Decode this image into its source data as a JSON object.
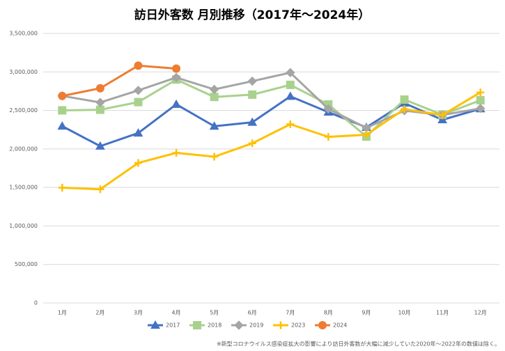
{
  "chart_data": {
    "type": "line",
    "title": "訪日外客数 月別推移（2017年～2024年）",
    "categories": [
      "1月",
      "2月",
      "3月",
      "4月",
      "5月",
      "6月",
      "7月",
      "8月",
      "9月",
      "10月",
      "11月",
      "12月"
    ],
    "series": [
      {
        "name": "2017",
        "color": "#4472c4",
        "marker": "triangle",
        "values": [
          2296000,
          2036000,
          2206000,
          2579000,
          2295000,
          2346000,
          2683000,
          2478000,
          2280000,
          2595000,
          2378000,
          2521000
        ]
      },
      {
        "name": "2018",
        "color": "#a9d18e",
        "marker": "square",
        "values": [
          2501000,
          2509000,
          2608000,
          2901000,
          2675000,
          2705000,
          2832000,
          2578000,
          2160000,
          2641000,
          2444000,
          2632000
        ]
      },
      {
        "name": "2019",
        "color": "#a5a5a5",
        "marker": "diamond",
        "values": [
          2689000,
          2604000,
          2760000,
          2927000,
          2773000,
          2880000,
          2991000,
          2520000,
          2273000,
          2497000,
          2441000,
          2526000
        ]
      },
      {
        "name": "2023",
        "color": "#ffc000",
        "marker": "plus",
        "values": [
          1497000,
          1476000,
          1818000,
          1949000,
          1899000,
          2073000,
          2321000,
          2157000,
          2184000,
          2517000,
          2440000,
          2734000
        ]
      },
      {
        "name": "2024",
        "color": "#ed7d31",
        "marker": "circle",
        "values": [
          2688000,
          2788000,
          3082000,
          3043000,
          null,
          null,
          null,
          null,
          null,
          null,
          null,
          null
        ]
      }
    ],
    "ylim": [
      0,
      3500000
    ],
    "yticks": [
      0,
      {
        "value": 500000,
        "label": "500,000"
      },
      {
        "value": 1000000,
        "label": "1,000,000"
      },
      {
        "value": 1500000,
        "label": "1,500,000"
      },
      {
        "value": 2000000,
        "label": "2,000,000"
      },
      {
        "value": 2500000,
        "label": "2,500,000"
      },
      {
        "value": 3000000,
        "label": "3,000,000"
      },
      {
        "value": 3500000,
        "label": "3,500,000"
      }
    ],
    "grid": true,
    "legend": "bottom",
    "note": "※新型コロナウイルス感染症拡大の影響により訪日外客数が大幅に減少していた2020年～2022年の数値は除く。"
  }
}
